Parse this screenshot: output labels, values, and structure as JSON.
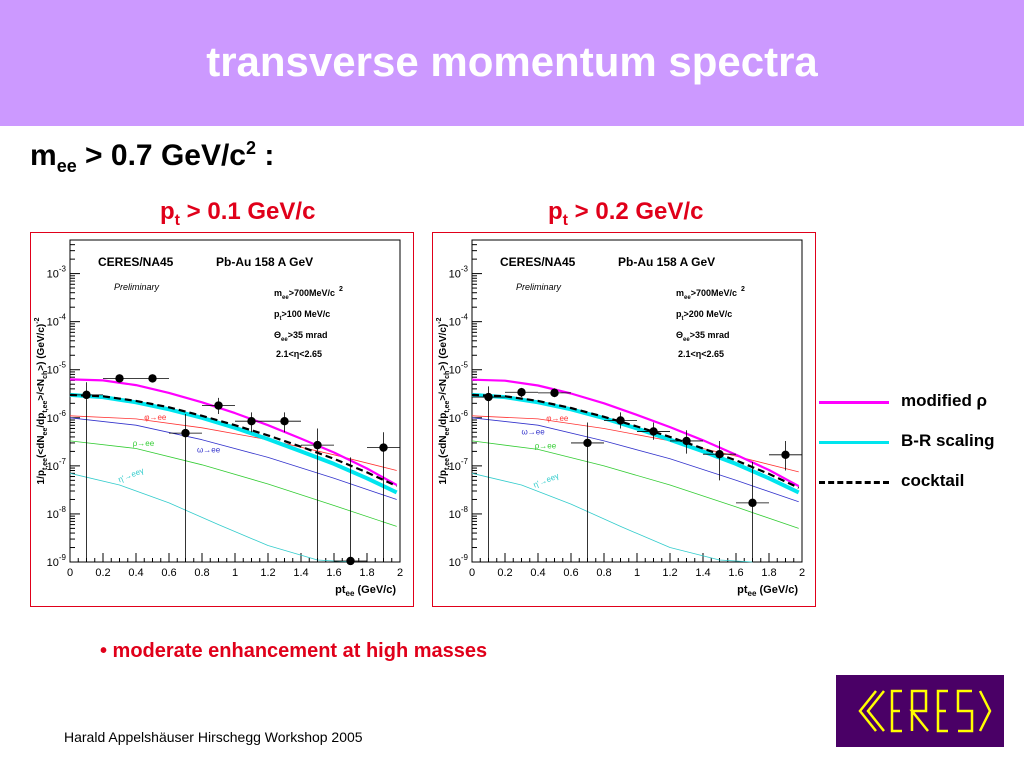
{
  "slide": {
    "title": "transverse momentum spectra",
    "mass_cut": {
      "symbol": "m",
      "sub": "ee",
      "rest": " > 0.7 GeV/c",
      "sup": "2",
      "end": " :"
    },
    "left_cut": {
      "p": "p",
      "sub": "t",
      "rest": " > 0.1 GeV/c"
    },
    "right_cut": {
      "p": "p",
      "sub": "t",
      "rest": " > 0.2 GeV/c"
    },
    "bullet": "• moderate enhancement at high masses",
    "footer": "Harald Appelshäuser  Hirschegg Workshop 2005",
    "logo_text": "CERES"
  },
  "legend": [
    {
      "label": "modified ρ",
      "color": "#ff00ff",
      "style": "solid"
    },
    {
      "label": "B-R scaling",
      "color": "#00e5ee",
      "style": "solid"
    },
    {
      "label": "cocktail",
      "color": "#000000",
      "style": "dashed"
    }
  ],
  "colors": {
    "frame": "#e0001a",
    "modified_rho": "#ff00ff",
    "br_scaling": "#00e5ee",
    "cocktail": "#000000",
    "phi": "#ff3333",
    "omega": "#3333cc",
    "rho": "#33cc33",
    "eta_prime": "#33cccc"
  },
  "chart_data": [
    {
      "type": "scatter",
      "experiment": "CERES/NA45",
      "system": "Pb-Au 158 A GeV",
      "status": "Preliminary",
      "cuts": [
        "m",
        "ee",
        ">700MeV/c",
        "2",
        "p",
        "t",
        ">100 MeV/c",
        "Θ",
        "ee",
        ">35 mrad",
        "2.1<η<2.65"
      ],
      "cut_text": {
        "mee": ">700MeV/c",
        "mee_sup": "2",
        "pt": ">100 MeV/c",
        "theta": ">35 mrad",
        "eta": "2.1<",
        "eta_sym": "η",
        "eta_end": "<2.65"
      },
      "ylabel": "1/p",
      "xlabel": "pt",
      "xlabel_sub": "ee",
      "xlabel_unit": " (GeV/c)",
      "xlim": [
        0,
        2
      ],
      "ylim": [
        1e-09,
        0.005
      ],
      "yscale": "log",
      "xticks": [
        "0",
        "0.2",
        "0.4",
        "0.6",
        "0.8",
        "1",
        "1.2",
        "1.4",
        "1.6",
        "1.8",
        "2"
      ],
      "yticks": [
        {
          "exp": "-9",
          "v": 1e-09
        },
        {
          "exp": "-8",
          "v": 1e-08
        },
        {
          "exp": "-7",
          "v": 1e-07
        },
        {
          "exp": "-6",
          "v": 1e-06
        },
        {
          "exp": "-5",
          "v": 1e-05
        },
        {
          "exp": "-4",
          "v": 0.0001
        },
        {
          "exp": "-3",
          "v": 0.001
        }
      ],
      "points": [
        {
          "x": 0.1,
          "y": 3e-06,
          "xerr": 0.1,
          "ylo": 1e-09,
          "yhi": 5.5e-06
        },
        {
          "x": 0.3,
          "y": 6.6e-06,
          "xerr": 0.1,
          "ylo": 5.5e-06,
          "yhi": 8e-06
        },
        {
          "x": 0.5,
          "y": 6.6e-06,
          "xerr": 0.1,
          "ylo": 5.5e-06,
          "yhi": 8e-06
        },
        {
          "x": 0.7,
          "y": 4.8e-07,
          "xerr": 0.1,
          "ylo": 1e-09,
          "yhi": 1.2e-06
        },
        {
          "x": 0.9,
          "y": 1.8e-06,
          "xerr": 0.1,
          "ylo": 1.2e-06,
          "yhi": 2.6e-06
        },
        {
          "x": 1.1,
          "y": 8.5e-07,
          "xerr": 0.1,
          "ylo": 5e-07,
          "yhi": 1.3e-06
        },
        {
          "x": 1.3,
          "y": 8.5e-07,
          "xerr": 0.1,
          "ylo": 5e-07,
          "yhi": 1.3e-06
        },
        {
          "x": 1.5,
          "y": 2.7e-07,
          "xerr": 0.1,
          "ylo": 1e-09,
          "yhi": 6e-07
        },
        {
          "x": 1.7,
          "y": 1.05e-09,
          "xerr": 0.1,
          "ylo": 1e-09,
          "yhi": 1.5e-07
        },
        {
          "x": 1.9,
          "y": 2.4e-07,
          "xerr": 0.1,
          "ylo": 1e-09,
          "yhi": 5e-07
        }
      ],
      "channel_labels": [
        {
          "label": "φ→ee",
          "color": "phi",
          "x": 0.45,
          "y": 9e-07
        },
        {
          "label": "ρ→ee",
          "color": "rho",
          "x": 0.38,
          "y": 2.6e-07
        },
        {
          "label": "ω→ee",
          "color": "omega",
          "x": 0.77,
          "y": 1.9e-07
        },
        {
          "label": "η'→eeγ",
          "color": "eta_prime",
          "x": 0.3,
          "y": 4.5e-08
        }
      ],
      "curves": [
        {
          "name": "modified ρ",
          "color": "modified_rho",
          "width": 2.2,
          "dash": "",
          "x": [
            0,
            0.2,
            0.4,
            0.6,
            0.8,
            1.0,
            1.2,
            1.4,
            1.6,
            1.8,
            1.98
          ],
          "y": [
            6.3e-06,
            6e-06,
            4.8e-06,
            3.3e-06,
            2.1e-06,
            1.25e-06,
            7e-07,
            3.7e-07,
            1.9e-07,
            8.8e-08,
            4e-08
          ]
        },
        {
          "name": "B-R scaling",
          "color": "br_scaling",
          "width": 4,
          "dash": "",
          "x": [
            0,
            0.2,
            0.4,
            0.6,
            0.8,
            1.0,
            1.2,
            1.4,
            1.6,
            1.8,
            1.98
          ],
          "y": [
            3e-06,
            2.7e-06,
            2.1e-06,
            1.5e-06,
            1e-06,
            6.2e-07,
            3.6e-07,
            2e-07,
            1.1e-07,
            5.5e-08,
            2.8e-08
          ]
        },
        {
          "name": "cocktail",
          "color": "cocktail",
          "width": 2.2,
          "dash": "7,4",
          "x": [
            0,
            0.2,
            0.4,
            0.6,
            0.8,
            1.0,
            1.2,
            1.4,
            1.6,
            1.8,
            1.98
          ],
          "y": [
            3e-06,
            2.8e-06,
            2.25e-06,
            1.65e-06,
            1.1e-06,
            7e-07,
            4.3e-07,
            2.5e-07,
            1.4e-07,
            7.3e-08,
            3.8e-08
          ]
        },
        {
          "name": "φ→ee",
          "color": "phi",
          "width": 0.8,
          "dash": "",
          "x": [
            0,
            0.4,
            0.8,
            1.2,
            1.6,
            1.98
          ],
          "y": [
            1.1e-06,
            9.5e-07,
            6.2e-07,
            3.5e-07,
            1.7e-07,
            8e-08
          ]
        },
        {
          "name": "ω→ee",
          "color": "omega",
          "width": 0.8,
          "dash": "",
          "x": [
            0,
            0.4,
            0.8,
            1.2,
            1.6,
            1.98
          ],
          "y": [
            1e-06,
            7e-07,
            3.5e-07,
            1.5e-07,
            5.5e-08,
            2e-08
          ]
        },
        {
          "name": "ρ→ee",
          "color": "rho",
          "width": 0.8,
          "dash": "",
          "x": [
            0,
            0.4,
            0.8,
            1.2,
            1.6,
            1.98
          ],
          "y": [
            3.3e-07,
            2.3e-07,
            1.05e-07,
            4.2e-08,
            1.5e-08,
            5.5e-09
          ]
        },
        {
          "name": "η'→eeγ",
          "color": "eta_prime",
          "width": 0.8,
          "dash": "",
          "x": [
            0,
            0.3,
            0.6,
            0.9,
            1.2,
            1.5,
            1.7
          ],
          "y": [
            7e-08,
            4e-08,
            1.7e-08,
            6e-09,
            2.2e-09,
            1.1e-09,
            1e-09
          ]
        }
      ]
    },
    {
      "type": "scatter",
      "experiment": "CERES/NA45",
      "system": "Pb-Au 158 A GeV",
      "status": "Preliminary",
      "cuts": [
        "m",
        "ee",
        ">700MeV/c",
        "2",
        "p",
        "t",
        ">200 MeV/c",
        "Θ",
        "ee",
        ">35 mrad",
        "2.1<η<2.65"
      ],
      "cut_text": {
        "mee": ">700MeV/c",
        "mee_sup": "2",
        "pt": ">200 MeV/c",
        "theta": ">35 mrad",
        "eta": "2.1<",
        "eta_sym": "η",
        "eta_end": "<2.65"
      },
      "ylabel": "1/p",
      "xlabel": "pt",
      "xlabel_sub": "ee",
      "xlabel_unit": " (GeV/c)",
      "xlim": [
        0,
        2
      ],
      "ylim": [
        1e-09,
        0.005
      ],
      "yscale": "log",
      "xticks": [
        "0",
        "0.2",
        "0.4",
        "0.6",
        "0.8",
        "1",
        "1.2",
        "1.4",
        "1.6",
        "1.8",
        "2"
      ],
      "yticks": [
        {
          "exp": "-9",
          "v": 1e-09
        },
        {
          "exp": "-8",
          "v": 1e-08
        },
        {
          "exp": "-7",
          "v": 1e-07
        },
        {
          "exp": "-6",
          "v": 1e-06
        },
        {
          "exp": "-5",
          "v": 1e-05
        },
        {
          "exp": "-4",
          "v": 0.0001
        },
        {
          "exp": "-3",
          "v": 0.001
        }
      ],
      "points": [
        {
          "x": 0.1,
          "y": 2.7e-06,
          "xerr": 0.1,
          "ylo": 1e-09,
          "yhi": 4.5e-06
        },
        {
          "x": 0.3,
          "y": 3.4e-06,
          "xerr": 0.1,
          "ylo": 2.7e-06,
          "yhi": 4.2e-06
        },
        {
          "x": 0.5,
          "y": 3.3e-06,
          "xerr": 0.1,
          "ylo": 2.7e-06,
          "yhi": 4.1e-06
        },
        {
          "x": 0.7,
          "y": 3e-07,
          "xerr": 0.1,
          "ylo": 1e-09,
          "yhi": 8e-07
        },
        {
          "x": 0.9,
          "y": 8.8e-07,
          "xerr": 0.1,
          "ylo": 6e-07,
          "yhi": 1.3e-06
        },
        {
          "x": 1.1,
          "y": 5.2e-07,
          "xerr": 0.1,
          "ylo": 3.5e-07,
          "yhi": 8e-07
        },
        {
          "x": 1.3,
          "y": 3.3e-07,
          "xerr": 0.1,
          "ylo": 1.8e-07,
          "yhi": 5.5e-07
        },
        {
          "x": 1.5,
          "y": 1.75e-07,
          "xerr": 0.1,
          "ylo": 5e-08,
          "yhi": 3.3e-07
        },
        {
          "x": 1.7,
          "y": 1.7e-08,
          "xerr": 0.1,
          "ylo": 1e-09,
          "yhi": 1.2e-07
        },
        {
          "x": 1.9,
          "y": 1.7e-07,
          "xerr": 0.1,
          "ylo": 8e-08,
          "yhi": 3.3e-07
        }
      ],
      "channel_labels": [
        {
          "label": "φ→ee",
          "color": "phi",
          "x": 0.45,
          "y": 8.5e-07
        },
        {
          "label": "ρ→ee",
          "color": "rho",
          "x": 0.38,
          "y": 2.3e-07
        },
        {
          "label": "ω→ee",
          "color": "omega",
          "x": 0.3,
          "y": 4.5e-07
        },
        {
          "label": "η'→eeγ",
          "color": "eta_prime",
          "x": 0.38,
          "y": 3.5e-08
        }
      ],
      "curves": [
        {
          "name": "modified ρ",
          "color": "modified_rho",
          "width": 2.2,
          "dash": "",
          "x": [
            0,
            0.2,
            0.4,
            0.6,
            0.8,
            1.0,
            1.2,
            1.4,
            1.6,
            1.8,
            1.98
          ],
          "y": [
            6.2e-06,
            5.9e-06,
            4.7e-06,
            3.2e-06,
            2e-06,
            1.15e-06,
            6.4e-07,
            3.4e-07,
            1.7e-07,
            8.2e-08,
            3.8e-08
          ]
        },
        {
          "name": "B-R scaling",
          "color": "br_scaling",
          "width": 4,
          "dash": "",
          "x": [
            0,
            0.2,
            0.4,
            0.6,
            0.8,
            1.0,
            1.2,
            1.4,
            1.6,
            1.8,
            1.98
          ],
          "y": [
            3e-06,
            2.7e-06,
            2.1e-06,
            1.5e-06,
            9.8e-07,
            6e-07,
            3.5e-07,
            2e-07,
            1.1e-07,
            5.5e-08,
            2.8e-08
          ]
        },
        {
          "name": "cocktail",
          "color": "cocktail",
          "width": 2.2,
          "dash": "7,4",
          "x": [
            0,
            0.2,
            0.4,
            0.6,
            0.8,
            1.0,
            1.2,
            1.4,
            1.6,
            1.8,
            1.98
          ],
          "y": [
            3e-06,
            2.8e-06,
            2.25e-06,
            1.6e-06,
            1.05e-06,
            6.6e-07,
            4e-07,
            2.3e-07,
            1.3e-07,
            6.8e-08,
            3.5e-08
          ]
        },
        {
          "name": "φ→ee",
          "color": "phi",
          "width": 0.8,
          "dash": "",
          "x": [
            0,
            0.4,
            0.8,
            1.2,
            1.6,
            1.98
          ],
          "y": [
            1.1e-06,
            9.5e-07,
            6e-07,
            3.3e-07,
            1.6e-07,
            7.5e-08
          ]
        },
        {
          "name": "ω→ee",
          "color": "omega",
          "width": 0.8,
          "dash": "",
          "x": [
            0,
            0.4,
            0.8,
            1.2,
            1.6,
            1.98
          ],
          "y": [
            1e-06,
            7e-07,
            3.3e-07,
            1.4e-07,
            5e-08,
            1.8e-08
          ]
        },
        {
          "name": "ρ→ee",
          "color": "rho",
          "width": 0.8,
          "dash": "",
          "x": [
            0,
            0.4,
            0.8,
            1.2,
            1.6,
            1.98
          ],
          "y": [
            3.3e-07,
            2.2e-07,
            1e-07,
            4e-08,
            1.4e-08,
            5e-09
          ]
        },
        {
          "name": "η'→eeγ",
          "color": "eta_prime",
          "width": 0.8,
          "dash": "",
          "x": [
            0,
            0.3,
            0.6,
            0.9,
            1.2,
            1.5,
            1.7
          ],
          "y": [
            7e-08,
            4e-08,
            1.6e-08,
            5.5e-09,
            2e-09,
            1.1e-09,
            1e-09
          ]
        }
      ]
    }
  ]
}
